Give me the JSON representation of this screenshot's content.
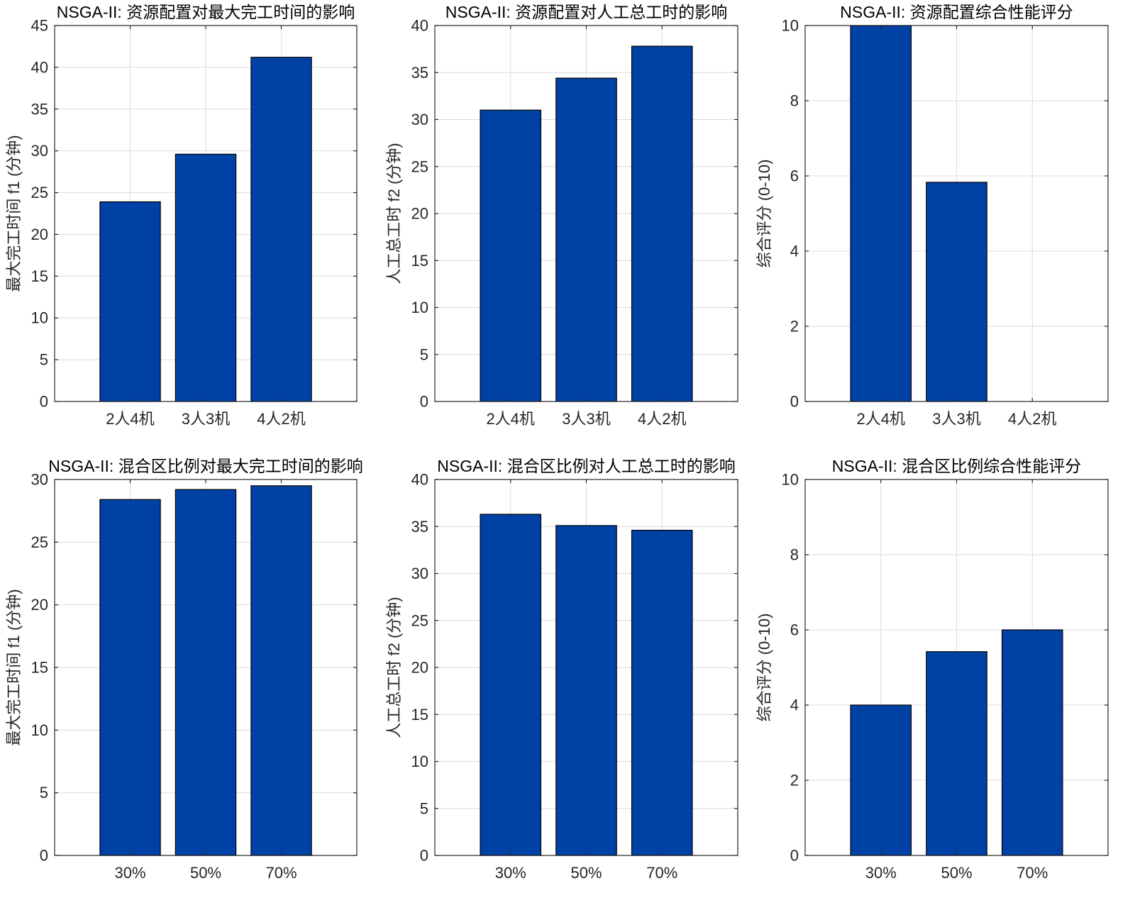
{
  "colors": {
    "bar_fill": "#0041a5",
    "bar_edge": "#000000",
    "grid": "#dcdcdc",
    "axis": "#262626"
  },
  "chart_data": [
    {
      "type": "bar",
      "title": "NSGA-II: 资源配置对最大完工时间的影响",
      "xlabel": "",
      "ylabel": "最大完工时间 f1 (分钟)",
      "categories": [
        "2人4机",
        "3人3机",
        "4人2机"
      ],
      "values": [
        23.9,
        29.6,
        41.2
      ],
      "ylim": [
        0,
        45
      ],
      "yticks": [
        0,
        5,
        10,
        15,
        20,
        25,
        30,
        35,
        40,
        45
      ],
      "grid": true
    },
    {
      "type": "bar",
      "title": "NSGA-II: 资源配置对人工总工时的影响",
      "xlabel": "",
      "ylabel": "人工总工时 f2 (分钟)",
      "categories": [
        "2人4机",
        "3人3机",
        "4人2机"
      ],
      "values": [
        31.0,
        34.4,
        37.8
      ],
      "ylim": [
        0,
        40
      ],
      "yticks": [
        0,
        5,
        10,
        15,
        20,
        25,
        30,
        35,
        40
      ],
      "grid": true
    },
    {
      "type": "bar",
      "title": "NSGA-II: 资源配置综合性能评分",
      "xlabel": "",
      "ylabel": "综合评分 (0-10)",
      "categories": [
        "2人4机",
        "3人3机",
        "4人2机"
      ],
      "values": [
        10.0,
        5.83,
        0.0
      ],
      "ylim": [
        0,
        10
      ],
      "yticks": [
        0,
        2,
        4,
        6,
        8,
        10
      ],
      "grid": true
    },
    {
      "type": "bar",
      "title": "NSGA-II: 混合区比例对最大完工时间的影响",
      "xlabel": "",
      "ylabel": "最大完工时间 f1 (分钟)",
      "categories": [
        "30%",
        "50%",
        "70%"
      ],
      "values": [
        28.4,
        29.2,
        29.5
      ],
      "ylim": [
        0,
        30
      ],
      "yticks": [
        0,
        5,
        10,
        15,
        20,
        25,
        30
      ],
      "grid": true
    },
    {
      "type": "bar",
      "title": "NSGA-II: 混合区比例对人工总工时的影响",
      "xlabel": "",
      "ylabel": "人工总工时 f2 (分钟)",
      "categories": [
        "30%",
        "50%",
        "70%"
      ],
      "values": [
        36.3,
        35.1,
        34.6
      ],
      "ylim": [
        0,
        40
      ],
      "yticks": [
        0,
        5,
        10,
        15,
        20,
        25,
        30,
        35,
        40
      ],
      "grid": true
    },
    {
      "type": "bar",
      "title": "NSGA-II: 混合区比例综合性能评分",
      "xlabel": "",
      "ylabel": "综合评分 (0-10)",
      "categories": [
        "30%",
        "50%",
        "70%"
      ],
      "values": [
        4.0,
        5.42,
        6.0
      ],
      "ylim": [
        0,
        10
      ],
      "yticks": [
        0,
        2,
        4,
        6,
        8,
        10
      ],
      "grid": true
    }
  ]
}
